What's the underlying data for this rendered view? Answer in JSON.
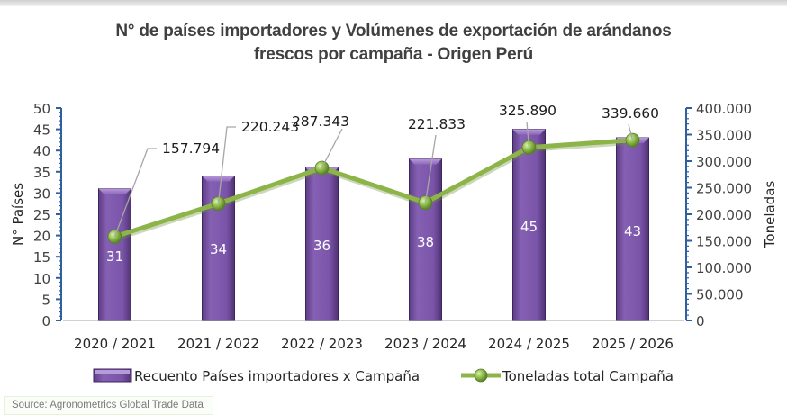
{
  "chart_data": {
    "type": "bar+line",
    "title": "N° de países importadores y Volúmenes de exportación de arándanos frescos por campaña - Origen Perú",
    "title_lines": [
      "N° de países importadores y Volúmenes de exportación de arándanos",
      "frescos por campaña - Origen Perú"
    ],
    "categories": [
      "2020 / 2021",
      "2021 / 2022",
      "2022 / 2023",
      "2023 / 2024",
      "2024 / 2025",
      "2025 / 2026"
    ],
    "series": [
      {
        "name": "Recuento Países importadores x Campaña",
        "type": "bar",
        "axis": "left",
        "color": "#7d55a8",
        "values": [
          31,
          34,
          36,
          38,
          45,
          43
        ],
        "labels": [
          "31",
          "34",
          "36",
          "38",
          "45",
          "43"
        ]
      },
      {
        "name": "Toneladas total Campaña",
        "type": "line",
        "axis": "right",
        "color": "#8cb449",
        "values": [
          157794,
          220243,
          287343,
          221833,
          325890,
          339660
        ],
        "labels": [
          "157.794",
          "220.243",
          "287.343",
          "221.833",
          "325.890",
          "339.660"
        ]
      }
    ],
    "ylabel": "N° Países",
    "ylim": [
      0,
      50
    ],
    "yticks": [
      "0",
      "5",
      "10",
      "15",
      "20",
      "25",
      "30",
      "35",
      "40",
      "45",
      "50"
    ],
    "y2label": "Toneladas",
    "y2lim": [
      0,
      400000
    ],
    "y2ticks": [
      "0",
      "50.000",
      "100.000",
      "150.000",
      "200.000",
      "250.000",
      "300.000",
      "350.000",
      "400.000"
    ],
    "grid": false,
    "legend": "bottom"
  },
  "source": "Source: Agronometrics Global Trade Data"
}
